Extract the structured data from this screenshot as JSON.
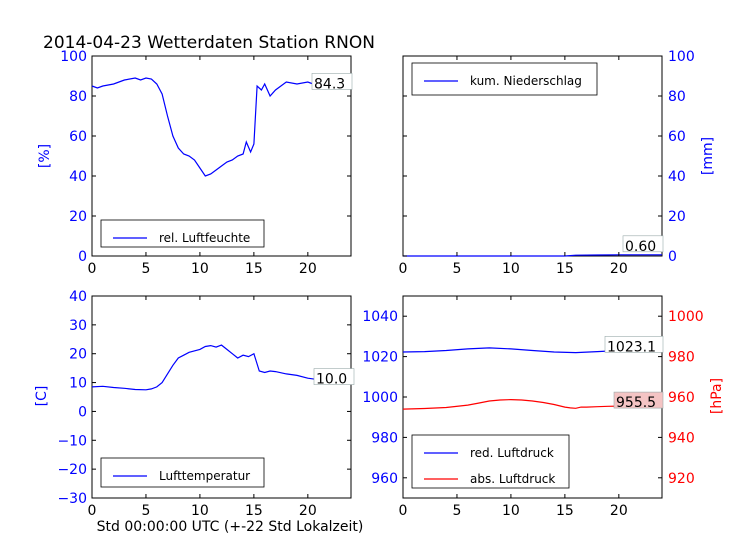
{
  "title": "2014-04-23 Wetterdaten Station RNON",
  "xlabel": "Std 00:00:00 UTC (+-22 Std Lokalzeit)",
  "chart_data": [
    {
      "type": "line",
      "xlim": [
        0,
        24
      ],
      "ylim": [
        0,
        100
      ],
      "ylabel": "[%]",
      "ylabel_color": "#0000ff",
      "legend_position": "lower-left",
      "series": [
        {
          "name": "rel. Luftfeuchte",
          "color": "#0000ff",
          "points": [
            [
              0,
              85
            ],
            [
              0.5,
              84
            ],
            [
              1,
              85
            ],
            [
              2,
              86
            ],
            [
              3,
              88
            ],
            [
              4,
              89
            ],
            [
              4.5,
              88
            ],
            [
              5,
              89
            ],
            [
              5.5,
              88.5
            ],
            [
              6,
              86
            ],
            [
              6.5,
              81
            ],
            [
              7,
              70
            ],
            [
              7.5,
              60
            ],
            [
              8,
              54
            ],
            [
              8.5,
              51
            ],
            [
              9,
              50
            ],
            [
              9.5,
              48
            ],
            [
              10,
              44
            ],
            [
              10.5,
              40
            ],
            [
              11,
              41
            ],
            [
              11.5,
              43
            ],
            [
              12,
              45
            ],
            [
              12.5,
              47
            ],
            [
              13,
              48
            ],
            [
              13.5,
              50
            ],
            [
              14,
              51
            ],
            [
              14.3,
              57
            ],
            [
              14.7,
              52
            ],
            [
              15,
              56
            ],
            [
              15.3,
              85
            ],
            [
              15.7,
              83
            ],
            [
              16,
              86
            ],
            [
              16.5,
              80
            ],
            [
              17,
              83
            ],
            [
              18,
              87
            ],
            [
              19,
              86
            ],
            [
              20,
              87
            ],
            [
              20.5,
              86
            ],
            [
              21,
              85
            ],
            [
              22,
              85
            ],
            [
              22.5,
              85
            ],
            [
              23,
              84.5
            ],
            [
              24,
              84.3
            ]
          ]
        }
      ],
      "annotation": "84.3",
      "annotation_y": 84.3
    },
    {
      "type": "line",
      "xlim": [
        0,
        24
      ],
      "ylim": [
        0,
        100
      ],
      "ylabel": "[mm]",
      "ylabel_color": "#0000ff",
      "yaxis_side": "right",
      "legend_position": "upper-left",
      "series": [
        {
          "name": "kum. Niederschlag",
          "color": "#0000ff",
          "points": [
            [
              0,
              0
            ],
            [
              15,
              0
            ],
            [
              15.5,
              0.2
            ],
            [
              16,
              0.4
            ],
            [
              18,
              0.5
            ],
            [
              20,
              0.6
            ],
            [
              24,
              0.6
            ]
          ]
        }
      ],
      "annotation": "0.60",
      "annotation_y": 0.6
    },
    {
      "type": "line",
      "xlim": [
        0,
        24
      ],
      "ylim": [
        -30,
        40
      ],
      "ylabel": "[C]",
      "ylabel_color": "#0000ff",
      "legend_position": "lower-left",
      "series": [
        {
          "name": "Lufttemperatur",
          "color": "#0000ff",
          "points": [
            [
              0,
              8.5
            ],
            [
              1,
              8.7
            ],
            [
              2,
              8.3
            ],
            [
              3,
              8
            ],
            [
              4,
              7.6
            ],
            [
              5,
              7.5
            ],
            [
              5.5,
              7.8
            ],
            [
              6,
              8.5
            ],
            [
              6.5,
              10
            ],
            [
              7,
              13
            ],
            [
              7.5,
              16
            ],
            [
              8,
              18.5
            ],
            [
              8.5,
              19.5
            ],
            [
              9,
              20.5
            ],
            [
              10,
              21.5
            ],
            [
              10.5,
              22.5
            ],
            [
              11,
              22.8
            ],
            [
              11.5,
              22.3
            ],
            [
              12,
              23
            ],
            [
              12.5,
              21.5
            ],
            [
              13,
              20
            ],
            [
              13.5,
              18.5
            ],
            [
              14,
              19.5
            ],
            [
              14.5,
              19
            ],
            [
              15,
              20
            ],
            [
              15.5,
              14
            ],
            [
              16,
              13.5
            ],
            [
              16.5,
              14
            ],
            [
              17,
              13.8
            ],
            [
              18,
              13
            ],
            [
              19,
              12.5
            ],
            [
              20,
              11.5
            ],
            [
              21,
              11
            ],
            [
              22,
              10.8
            ],
            [
              23,
              10.3
            ],
            [
              24,
              10
            ]
          ]
        }
      ],
      "annotation": "10.0",
      "annotation_y": 10.0
    },
    {
      "type": "line",
      "xlim": [
        0,
        24
      ],
      "ylim": [
        950,
        1050
      ],
      "y2lim": [
        910,
        1010
      ],
      "ylabel": "",
      "y2label": "[hPa]",
      "y2label_color": "#ff0000",
      "legend_position": "lower-left",
      "series": [
        {
          "name": "red. Luftdruck",
          "color": "#0000ff",
          "axis": "left",
          "points": [
            [
              0,
              1022.3
            ],
            [
              2,
              1022.5
            ],
            [
              4,
              1023
            ],
            [
              6,
              1023.8
            ],
            [
              8,
              1024.3
            ],
            [
              10,
              1023.8
            ],
            [
              12,
              1023
            ],
            [
              14,
              1022.3
            ],
            [
              16,
              1022
            ],
            [
              18,
              1022.5
            ],
            [
              20,
              1023
            ],
            [
              22,
              1023.1
            ],
            [
              24,
              1023.1
            ]
          ]
        },
        {
          "name": "abs. Luftdruck",
          "color": "#ff0000",
          "axis": "right",
          "points": [
            [
              0,
              954
            ],
            [
              2,
              954.3
            ],
            [
              4,
              954.8
            ],
            [
              6,
              956
            ],
            [
              7,
              957
            ],
            [
              8,
              958
            ],
            [
              9,
              958.5
            ],
            [
              10,
              958.7
            ],
            [
              11,
              958.5
            ],
            [
              12,
              958
            ],
            [
              13,
              957.3
            ],
            [
              14,
              956.3
            ],
            [
              15,
              955
            ],
            [
              15.5,
              954.6
            ],
            [
              16,
              954.4
            ],
            [
              16.5,
              955
            ],
            [
              17,
              955
            ],
            [
              18,
              955.2
            ],
            [
              19,
              955.4
            ],
            [
              20,
              955.5
            ],
            [
              22,
              955.5
            ],
            [
              24,
              955.5
            ]
          ]
        }
      ],
      "annotations": [
        {
          "text": "1023.1",
          "axis": "left",
          "y": 1023.1,
          "bg": "#ffffff"
        },
        {
          "text": "955.5",
          "axis": "right",
          "y": 955.5,
          "bg": "#f4c4c4"
        }
      ]
    }
  ],
  "ticks": {
    "x": [
      "0",
      "5",
      "10",
      "15",
      "20"
    ],
    "x_values": [
      0,
      5,
      10,
      15,
      20
    ],
    "p1_y": [
      "0",
      "20",
      "40",
      "60",
      "80",
      "100"
    ],
    "p1_y_values": [
      0,
      20,
      40,
      60,
      80,
      100
    ],
    "p2_y": [
      "0",
      "20",
      "40",
      "60",
      "80",
      "100"
    ],
    "p2_y_values": [
      0,
      20,
      40,
      60,
      80,
      100
    ],
    "p3_y": [
      "−30",
      "−20",
      "−10",
      "0",
      "10",
      "20",
      "30",
      "40"
    ],
    "p3_y_values": [
      -30,
      -20,
      -10,
      0,
      10,
      20,
      30,
      40
    ],
    "p4_y": [
      "960",
      "980",
      "1000",
      "1020",
      "1040"
    ],
    "p4_y_values": [
      960,
      980,
      1000,
      1020,
      1040
    ],
    "p4_y2": [
      "920",
      "940",
      "960",
      "980",
      "1000"
    ],
    "p4_y2_values": [
      920,
      940,
      960,
      980,
      1000
    ]
  },
  "tick_color_blue": "#0000ff",
  "tick_color_red": "#ff0000"
}
